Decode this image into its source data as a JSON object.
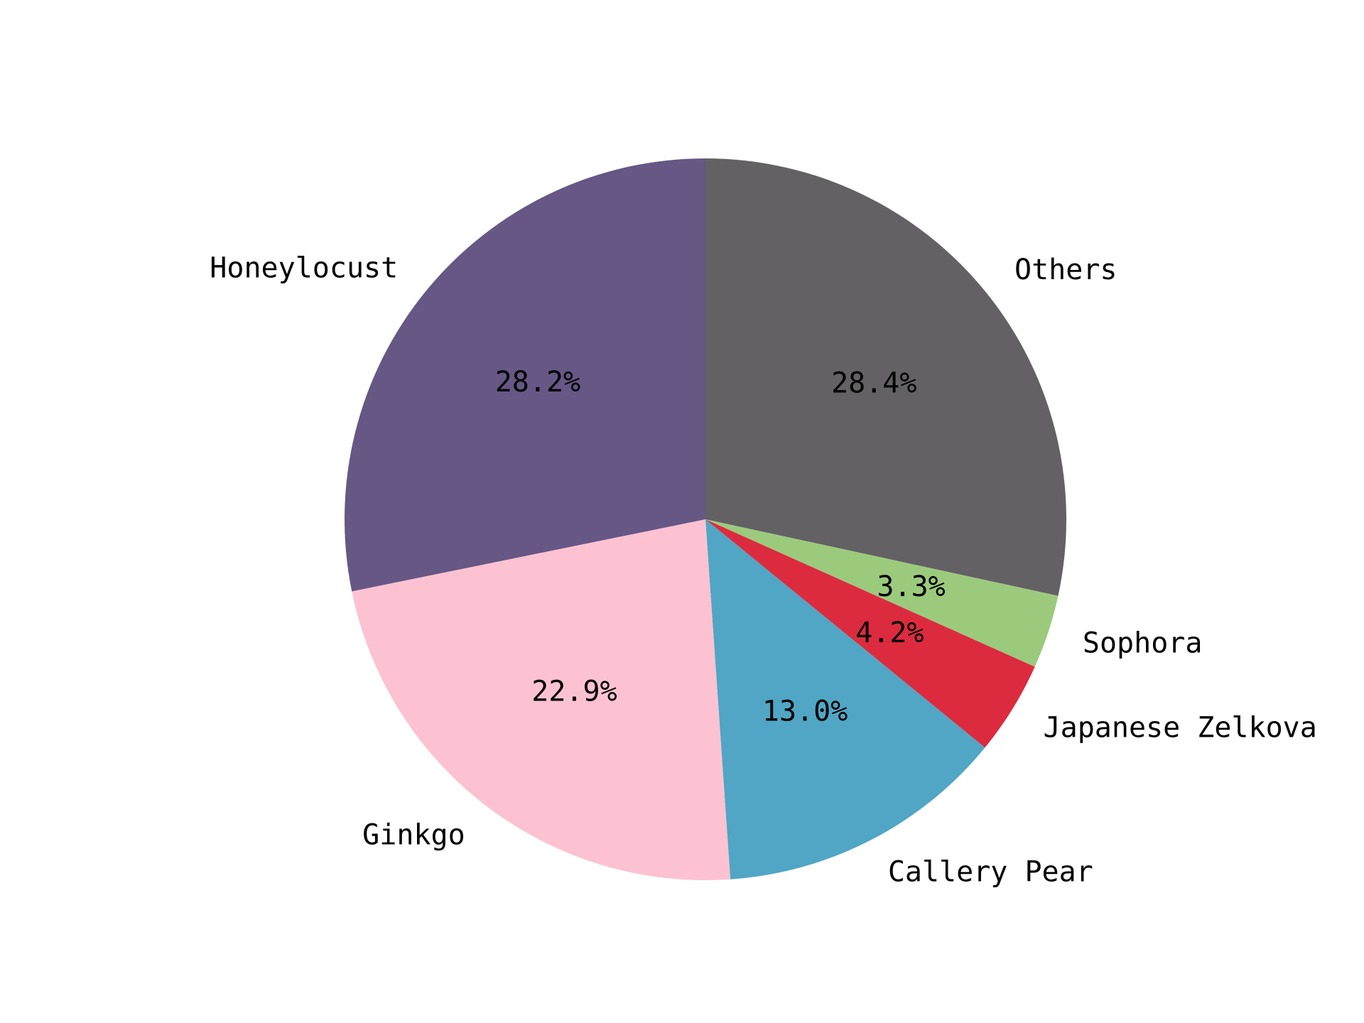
{
  "chart_data": {
    "type": "pie",
    "title": "",
    "start_angle_deg": 90,
    "direction": "clockwise",
    "categories": [
      "Others",
      "Sophora",
      "Japanese Zelkova",
      "Callery Pear",
      "Ginkgo",
      "Honeylocust"
    ],
    "values": [
      28.4,
      3.3,
      4.2,
      13.0,
      22.9,
      28.2
    ],
    "pct_labels": [
      "28.4%",
      "3.3%",
      "4.2%",
      "13.0%",
      "22.9%",
      "28.2%"
    ],
    "colors": [
      "#636164",
      "#9bca7d",
      "#dc2b3f",
      "#50a6c4",
      "#fcc2d1",
      "#665785"
    ]
  }
}
